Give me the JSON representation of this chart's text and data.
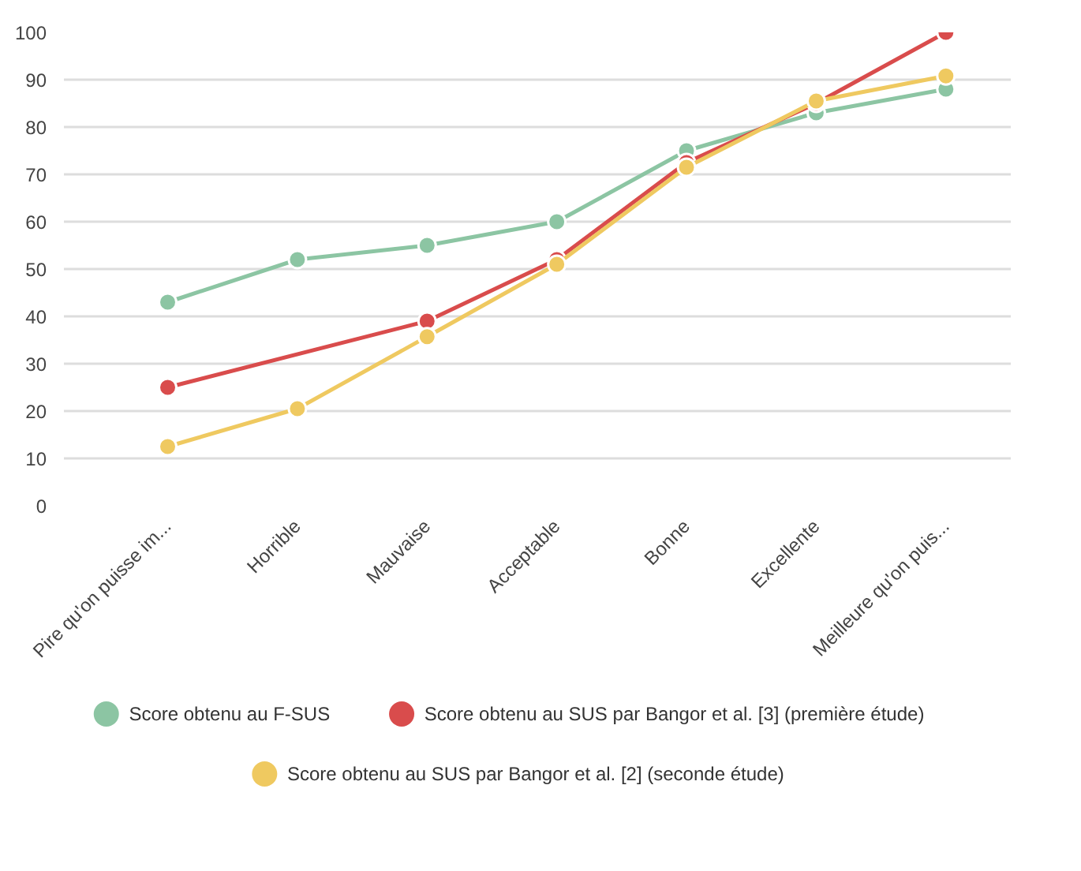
{
  "chart_data": {
    "type": "line",
    "categories": [
      "Pire qu'on puisse im...",
      "Horrible",
      "Mauvaise",
      "Acceptable",
      "Bonne",
      "Excellente",
      "Meilleure qu'on puis..."
    ],
    "series": [
      {
        "name": "Score obtenu au F-SUS",
        "color": "#8cc5a3",
        "values": [
          43,
          52,
          55,
          60,
          75,
          83,
          88
        ]
      },
      {
        "name": "Score obtenu au SUS par Bangor et al. [3] (première étude)",
        "color": "#d94c4c",
        "values": [
          25,
          null,
          39,
          52,
          72.5,
          85,
          100
        ]
      },
      {
        "name": "Score obtenu au SUS par Bangor et al. [2] (seconde étude)",
        "color": "#efc960",
        "values": [
          12.5,
          20.5,
          35.7,
          51,
          71.5,
          85.5,
          90.8
        ]
      }
    ],
    "ylim": [
      0,
      100
    ],
    "yticks": [
      0,
      10,
      20,
      30,
      40,
      50,
      60,
      70,
      80,
      90,
      100
    ],
    "grid": "y",
    "legend": "bottom",
    "marker": "circle",
    "line_style": "solid"
  }
}
